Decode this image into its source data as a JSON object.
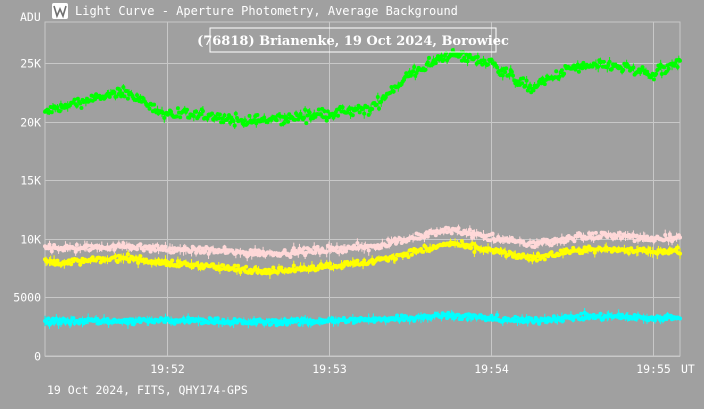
{
  "window": {
    "title": "Light Curve - Aperture Photometry, Average Background",
    "icon": "light-curve-app-icon"
  },
  "footer": {
    "text": "19 Oct 2024, FITS, QHY174-GPS"
  },
  "colors": {
    "background": "#a0a0a0",
    "grid": "#c8c8c8",
    "text": "#ffffff",
    "series_green": "#00ff00",
    "series_pink": "#ffd8d8",
    "series_yellow": "#ffff00",
    "series_cyan": "#00ffff"
  },
  "chart_data": {
    "type": "scatter",
    "title": "(76818) Brianenke, 19 Oct 2024, Borowiec",
    "ylabel": "ADU",
    "xlabel": "UT",
    "ylim": [
      0,
      28500
    ],
    "xlim": [
      "19:51:15",
      "19:55:10"
    ],
    "x_ticks": [
      "19:52",
      "19:53",
      "19:54",
      "19:55"
    ],
    "y_ticks": [
      {
        "value": 0,
        "label": "0"
      },
      {
        "value": 5000,
        "label": "5000"
      },
      {
        "value": 10000,
        "label": "10K"
      },
      {
        "value": 15000,
        "label": "15K"
      },
      {
        "value": 20000,
        "label": "20K"
      },
      {
        "value": 25000,
        "label": "25K"
      }
    ],
    "grid": true,
    "marker": "dots with vertical error bars",
    "series": [
      {
        "color": "#00ff00",
        "x": [
          "19:51:15",
          "19:51:30",
          "19:51:45",
          "19:52:00",
          "19:52:15",
          "19:52:30",
          "19:52:45",
          "19:53:00",
          "19:53:15",
          "19:53:30",
          "19:53:45",
          "19:54:00",
          "19:54:15",
          "19:54:30",
          "19:54:45",
          "19:55:00",
          "19:55:10"
        ],
        "y": [
          20800,
          21800,
          22500,
          20600,
          20500,
          20000,
          20300,
          20700,
          21000,
          24000,
          25800,
          25000,
          22800,
          24600,
          24800,
          24000,
          25000
        ],
        "scatter": 700
      },
      {
        "color": "#ffd8d8",
        "x": [
          "19:51:15",
          "19:51:30",
          "19:51:45",
          "19:52:00",
          "19:52:15",
          "19:52:30",
          "19:52:45",
          "19:53:00",
          "19:53:15",
          "19:53:30",
          "19:53:45",
          "19:54:00",
          "19:54:15",
          "19:54:30",
          "19:54:45",
          "19:55:00",
          "19:55:10"
        ],
        "y": [
          9300,
          9200,
          9400,
          9100,
          9000,
          8800,
          8800,
          9100,
          9300,
          10000,
          10800,
          10100,
          9500,
          10100,
          10300,
          10000,
          10200
        ],
        "scatter": 450
      },
      {
        "color": "#ffff00",
        "x": [
          "19:51:15",
          "19:51:30",
          "19:51:45",
          "19:52:00",
          "19:52:15",
          "19:52:30",
          "19:52:45",
          "19:53:00",
          "19:53:15",
          "19:53:30",
          "19:53:45",
          "19:54:00",
          "19:54:15",
          "19:54:30",
          "19:54:45",
          "19:55:00",
          "19:55:10"
        ],
        "y": [
          8000,
          8100,
          8400,
          7900,
          7700,
          7300,
          7300,
          7700,
          8000,
          8800,
          9600,
          9000,
          8300,
          9000,
          9100,
          8900,
          9000
        ],
        "scatter": 400
      },
      {
        "color": "#00ffff",
        "x": [
          "19:51:15",
          "19:51:30",
          "19:51:45",
          "19:52:00",
          "19:52:15",
          "19:52:30",
          "19:52:45",
          "19:53:00",
          "19:53:15",
          "19:53:30",
          "19:53:45",
          "19:54:00",
          "19:54:15",
          "19:54:30",
          "19:54:45",
          "19:55:00",
          "19:55:10"
        ],
        "y": [
          3000,
          3000,
          3000,
          3000,
          3000,
          2900,
          2900,
          3000,
          3100,
          3300,
          3500,
          3200,
          3000,
          3300,
          3400,
          3200,
          3300
        ],
        "scatter": 400
      }
    ]
  }
}
